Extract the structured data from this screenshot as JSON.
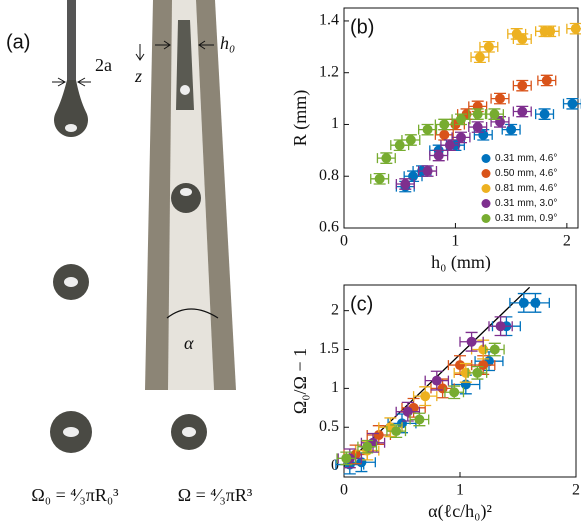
{
  "panel_a": {
    "label": "(a)",
    "width_label": "2a",
    "gap_label": "h₀",
    "axis_label": "z",
    "angle_label": "α",
    "left_caption": "Ω₀ = ⁴⁄₃πR₀³",
    "right_caption": "Ω = ⁴⁄₃πR³"
  },
  "chart_data": [
    {
      "type": "scatter",
      "panel_label": "(b)",
      "x_label": "h₀ (mm)",
      "y_label": "R (mm)",
      "xlim": [
        0,
        2.1
      ],
      "ylim": [
        0.6,
        1.45
      ],
      "xticks": [
        0,
        1,
        2
      ],
      "yticks": [
        0.6,
        0.8,
        1,
        1.2,
        1.4
      ],
      "legend": "lower right",
      "series": [
        {
          "name": "0.31 mm, 4.6°",
          "color": "#0072bd",
          "x": [
            0.55,
            0.62,
            0.7,
            0.85,
            1.0,
            1.25,
            1.5,
            1.8,
            2.05
          ],
          "values": [
            0.76,
            0.8,
            0.82,
            0.9,
            0.92,
            0.96,
            0.98,
            1.04,
            1.08
          ],
          "xerr": 0.08,
          "yerr": 0.02
        },
        {
          "name": "0.50 mm, 4.6°",
          "color": "#d95319",
          "x": [
            0.9,
            1.0,
            1.1,
            1.2,
            1.4,
            1.6,
            1.82
          ],
          "values": [
            0.96,
            1.0,
            1.04,
            1.07,
            1.1,
            1.15,
            1.17
          ],
          "xerr": 0.08,
          "yerr": 0.02
        },
        {
          "name": "0.81 mm, 4.6°",
          "color": "#edb120",
          "x": [
            1.22,
            1.3,
            1.55,
            1.6,
            1.8,
            1.85,
            2.08
          ],
          "values": [
            1.26,
            1.3,
            1.35,
            1.33,
            1.36,
            1.36,
            1.37
          ],
          "xerr": 0.08,
          "yerr": 0.02
        },
        {
          "name": "0.31 mm, 3.0°",
          "color": "#7e2f8e",
          "x": [
            0.55,
            0.75,
            0.85,
            0.95,
            1.05,
            1.2,
            1.4,
            1.6
          ],
          "values": [
            0.77,
            0.82,
            0.88,
            0.92,
            0.95,
            0.99,
            1.01,
            1.05
          ],
          "xerr": 0.08,
          "yerr": 0.02
        },
        {
          "name": "0.31 mm, 0.9°",
          "color": "#77ac30",
          "x": [
            0.32,
            0.38,
            0.5,
            0.6,
            0.75,
            0.9,
            1.05,
            1.2,
            1.35
          ],
          "values": [
            0.79,
            0.87,
            0.92,
            0.94,
            0.98,
            1.0,
            1.02,
            1.04,
            1.04
          ],
          "xerr": 0.08,
          "yerr": 0.02
        }
      ]
    },
    {
      "type": "scatter",
      "panel_label": "(c)",
      "x_label": "α(ℓc/h₀)²",
      "y_label": "Ω₀/Ω − 1",
      "xlim": [
        0,
        2
      ],
      "ylim": [
        -0.14,
        2.33
      ],
      "xticks": [
        0,
        1,
        2
      ],
      "yticks": [
        0,
        0.5,
        1,
        1.5,
        2
      ],
      "fit": {
        "color": "#000000",
        "x": [
          0,
          1.6
        ],
        "values": [
          0,
          2.3
        ]
      },
      "series": [
        {
          "color": "#0072bd",
          "x": [
            0.05,
            0.15,
            0.5,
            1.05,
            1.25,
            1.4,
            1.55,
            1.65
          ],
          "values": [
            0.02,
            0.05,
            0.55,
            1.05,
            1.35,
            1.8,
            2.1,
            2.1
          ],
          "xerr": 0.12,
          "yerr": 0.12
        },
        {
          "color": "#d95319",
          "x": [
            0.1,
            0.3,
            0.6,
            0.85,
            1.0,
            1.2
          ],
          "values": [
            0.15,
            0.4,
            0.75,
            1.0,
            1.3,
            1.3
          ],
          "xerr": 0.1,
          "yerr": 0.12
        },
        {
          "color": "#edb120",
          "x": [
            0.2,
            0.4,
            0.7,
            1.05,
            1.2
          ],
          "values": [
            0.2,
            0.5,
            0.9,
            1.2,
            1.5
          ],
          "xerr": 0.1,
          "yerr": 0.12
        },
        {
          "color": "#7e2f8e",
          "x": [
            0.05,
            0.25,
            0.55,
            0.8,
            1.1,
            1.35
          ],
          "values": [
            0.1,
            0.3,
            0.7,
            1.1,
            1.6,
            1.8
          ],
          "xerr": 0.1,
          "yerr": 0.12
        },
        {
          "color": "#77ac30",
          "x": [
            0.02,
            0.2,
            0.45,
            0.65,
            0.95,
            1.15,
            1.3
          ],
          "values": [
            0.1,
            0.25,
            0.45,
            0.6,
            0.95,
            1.2,
            1.5
          ],
          "xerr": 0.08,
          "yerr": 0.08
        }
      ]
    }
  ]
}
